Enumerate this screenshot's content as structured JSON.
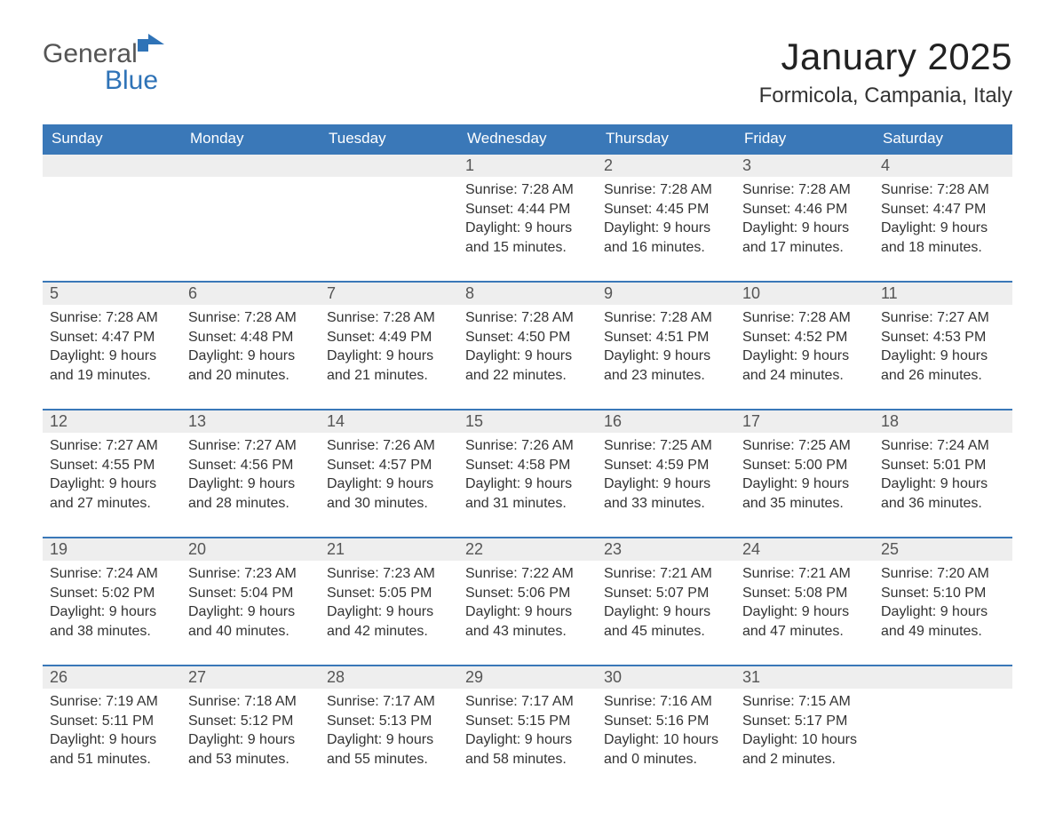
{
  "logo": {
    "line1": "General",
    "line2": "Blue",
    "color1": "#555555",
    "color2": "#2f73b7",
    "icon_color": "#2f73b7"
  },
  "title": "January 2025",
  "location": "Formicola, Campania, Italy",
  "colors": {
    "header_bg": "#3a78b8",
    "header_text": "#ffffff",
    "daynum_bg": "#eeeeee",
    "daynum_border": "#3a78b8",
    "body_text": "#333333",
    "page_bg": "#ffffff"
  },
  "day_headers": [
    "Sunday",
    "Monday",
    "Tuesday",
    "Wednesday",
    "Thursday",
    "Friday",
    "Saturday"
  ],
  "weeks": [
    [
      null,
      null,
      null,
      {
        "n": "1",
        "sunrise": "Sunrise: 7:28 AM",
        "sunset": "Sunset: 4:44 PM",
        "daylight": "Daylight: 9 hours and 15 minutes."
      },
      {
        "n": "2",
        "sunrise": "Sunrise: 7:28 AM",
        "sunset": "Sunset: 4:45 PM",
        "daylight": "Daylight: 9 hours and 16 minutes."
      },
      {
        "n": "3",
        "sunrise": "Sunrise: 7:28 AM",
        "sunset": "Sunset: 4:46 PM",
        "daylight": "Daylight: 9 hours and 17 minutes."
      },
      {
        "n": "4",
        "sunrise": "Sunrise: 7:28 AM",
        "sunset": "Sunset: 4:47 PM",
        "daylight": "Daylight: 9 hours and 18 minutes."
      }
    ],
    [
      {
        "n": "5",
        "sunrise": "Sunrise: 7:28 AM",
        "sunset": "Sunset: 4:47 PM",
        "daylight": "Daylight: 9 hours and 19 minutes."
      },
      {
        "n": "6",
        "sunrise": "Sunrise: 7:28 AM",
        "sunset": "Sunset: 4:48 PM",
        "daylight": "Daylight: 9 hours and 20 minutes."
      },
      {
        "n": "7",
        "sunrise": "Sunrise: 7:28 AM",
        "sunset": "Sunset: 4:49 PM",
        "daylight": "Daylight: 9 hours and 21 minutes."
      },
      {
        "n": "8",
        "sunrise": "Sunrise: 7:28 AM",
        "sunset": "Sunset: 4:50 PM",
        "daylight": "Daylight: 9 hours and 22 minutes."
      },
      {
        "n": "9",
        "sunrise": "Sunrise: 7:28 AM",
        "sunset": "Sunset: 4:51 PM",
        "daylight": "Daylight: 9 hours and 23 minutes."
      },
      {
        "n": "10",
        "sunrise": "Sunrise: 7:28 AM",
        "sunset": "Sunset: 4:52 PM",
        "daylight": "Daylight: 9 hours and 24 minutes."
      },
      {
        "n": "11",
        "sunrise": "Sunrise: 7:27 AM",
        "sunset": "Sunset: 4:53 PM",
        "daylight": "Daylight: 9 hours and 26 minutes."
      }
    ],
    [
      {
        "n": "12",
        "sunrise": "Sunrise: 7:27 AM",
        "sunset": "Sunset: 4:55 PM",
        "daylight": "Daylight: 9 hours and 27 minutes."
      },
      {
        "n": "13",
        "sunrise": "Sunrise: 7:27 AM",
        "sunset": "Sunset: 4:56 PM",
        "daylight": "Daylight: 9 hours and 28 minutes."
      },
      {
        "n": "14",
        "sunrise": "Sunrise: 7:26 AM",
        "sunset": "Sunset: 4:57 PM",
        "daylight": "Daylight: 9 hours and 30 minutes."
      },
      {
        "n": "15",
        "sunrise": "Sunrise: 7:26 AM",
        "sunset": "Sunset: 4:58 PM",
        "daylight": "Daylight: 9 hours and 31 minutes."
      },
      {
        "n": "16",
        "sunrise": "Sunrise: 7:25 AM",
        "sunset": "Sunset: 4:59 PM",
        "daylight": "Daylight: 9 hours and 33 minutes."
      },
      {
        "n": "17",
        "sunrise": "Sunrise: 7:25 AM",
        "sunset": "Sunset: 5:00 PM",
        "daylight": "Daylight: 9 hours and 35 minutes."
      },
      {
        "n": "18",
        "sunrise": "Sunrise: 7:24 AM",
        "sunset": "Sunset: 5:01 PM",
        "daylight": "Daylight: 9 hours and 36 minutes."
      }
    ],
    [
      {
        "n": "19",
        "sunrise": "Sunrise: 7:24 AM",
        "sunset": "Sunset: 5:02 PM",
        "daylight": "Daylight: 9 hours and 38 minutes."
      },
      {
        "n": "20",
        "sunrise": "Sunrise: 7:23 AM",
        "sunset": "Sunset: 5:04 PM",
        "daylight": "Daylight: 9 hours and 40 minutes."
      },
      {
        "n": "21",
        "sunrise": "Sunrise: 7:23 AM",
        "sunset": "Sunset: 5:05 PM",
        "daylight": "Daylight: 9 hours and 42 minutes."
      },
      {
        "n": "22",
        "sunrise": "Sunrise: 7:22 AM",
        "sunset": "Sunset: 5:06 PM",
        "daylight": "Daylight: 9 hours and 43 minutes."
      },
      {
        "n": "23",
        "sunrise": "Sunrise: 7:21 AM",
        "sunset": "Sunset: 5:07 PM",
        "daylight": "Daylight: 9 hours and 45 minutes."
      },
      {
        "n": "24",
        "sunrise": "Sunrise: 7:21 AM",
        "sunset": "Sunset: 5:08 PM",
        "daylight": "Daylight: 9 hours and 47 minutes."
      },
      {
        "n": "25",
        "sunrise": "Sunrise: 7:20 AM",
        "sunset": "Sunset: 5:10 PM",
        "daylight": "Daylight: 9 hours and 49 minutes."
      }
    ],
    [
      {
        "n": "26",
        "sunrise": "Sunrise: 7:19 AM",
        "sunset": "Sunset: 5:11 PM",
        "daylight": "Daylight: 9 hours and 51 minutes."
      },
      {
        "n": "27",
        "sunrise": "Sunrise: 7:18 AM",
        "sunset": "Sunset: 5:12 PM",
        "daylight": "Daylight: 9 hours and 53 minutes."
      },
      {
        "n": "28",
        "sunrise": "Sunrise: 7:17 AM",
        "sunset": "Sunset: 5:13 PM",
        "daylight": "Daylight: 9 hours and 55 minutes."
      },
      {
        "n": "29",
        "sunrise": "Sunrise: 7:17 AM",
        "sunset": "Sunset: 5:15 PM",
        "daylight": "Daylight: 9 hours and 58 minutes."
      },
      {
        "n": "30",
        "sunrise": "Sunrise: 7:16 AM",
        "sunset": "Sunset: 5:16 PM",
        "daylight": "Daylight: 10 hours and 0 minutes."
      },
      {
        "n": "31",
        "sunrise": "Sunrise: 7:15 AM",
        "sunset": "Sunset: 5:17 PM",
        "daylight": "Daylight: 10 hours and 2 minutes."
      },
      null
    ]
  ]
}
